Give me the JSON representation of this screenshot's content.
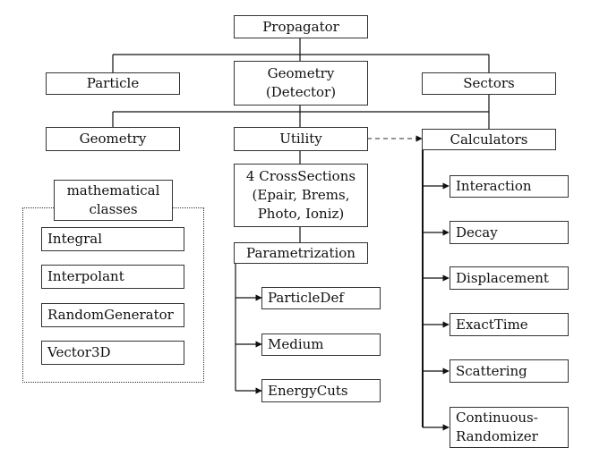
{
  "nodes": {
    "propagator": "Propagator",
    "particle": "Particle",
    "geometry_detector": [
      "Geometry",
      "(Detector)"
    ],
    "sectors": "Sectors",
    "geometry": "Geometry",
    "utility": "Utility",
    "calculators": "Calculators",
    "math_classes": [
      "mathematical",
      "classes"
    ],
    "integral": "Integral",
    "interpolant": "Interpolant",
    "random_generator": "RandomGenerator",
    "vector3d": "Vector3D",
    "cross_sections": [
      "4 CrossSections",
      "(Epair, Brems,",
      "Photo, Ioniz)"
    ],
    "parametrization": "Parametrization",
    "particle_def": "ParticleDef",
    "medium": "Medium",
    "energy_cuts": "EnergyCuts",
    "interaction": "Interaction",
    "decay": "Decay",
    "displacement": "Displacement",
    "exact_time": "ExactTime",
    "scattering": "Scattering",
    "continuous_randomizer": [
      "Continuous-",
      "Randomizer"
    ]
  }
}
